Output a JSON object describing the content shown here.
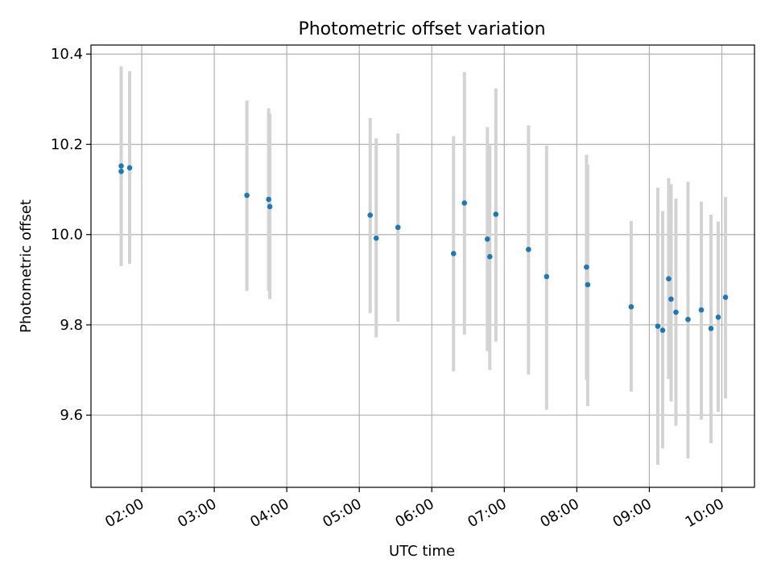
{
  "chart_data": {
    "type": "scatter",
    "title": "Photometric offset variation",
    "xlabel": "UTC time",
    "ylabel": "Photometric offset",
    "xlim": [
      "01:18",
      "10:27"
    ],
    "ylim": [
      9.44,
      10.42
    ],
    "x_ticks": [
      "02:00",
      "03:00",
      "04:00",
      "05:00",
      "06:00",
      "07:00",
      "08:00",
      "09:00",
      "10:00"
    ],
    "y_ticks": [
      9.6,
      9.8,
      10.0,
      10.2,
      10.4
    ],
    "y_tick_labels": [
      "9.6",
      "9.8",
      "10.0",
      "10.2",
      "10.4"
    ],
    "grid": true,
    "points": [
      {
        "x": "01:43",
        "y": 10.152,
        "low": 9.93,
        "high": 10.373
      },
      {
        "x": "01:43",
        "y": 10.14,
        "low": 9.93,
        "high": 10.35
      },
      {
        "x": "01:50",
        "y": 10.148,
        "low": 9.935,
        "high": 10.362
      },
      {
        "x": "03:27",
        "y": 10.087,
        "low": 9.875,
        "high": 10.297
      },
      {
        "x": "03:45",
        "y": 10.078,
        "low": 9.875,
        "high": 10.28
      },
      {
        "x": "03:46",
        "y": 10.062,
        "low": 9.857,
        "high": 10.268
      },
      {
        "x": "05:09",
        "y": 10.043,
        "low": 9.826,
        "high": 10.258
      },
      {
        "x": "05:14",
        "y": 9.992,
        "low": 9.772,
        "high": 10.213
      },
      {
        "x": "05:32",
        "y": 10.016,
        "low": 9.807,
        "high": 10.224
      },
      {
        "x": "06:18",
        "y": 9.958,
        "low": 9.697,
        "high": 10.218
      },
      {
        "x": "06:27",
        "y": 10.07,
        "low": 9.778,
        "high": 10.36
      },
      {
        "x": "06:46",
        "y": 9.99,
        "low": 9.742,
        "high": 10.238
      },
      {
        "x": "06:48",
        "y": 9.951,
        "low": 9.7,
        "high": 10.198
      },
      {
        "x": "06:53",
        "y": 10.045,
        "low": 9.763,
        "high": 10.324
      },
      {
        "x": "07:20",
        "y": 9.967,
        "low": 9.69,
        "high": 10.242
      },
      {
        "x": "07:35",
        "y": 9.907,
        "low": 9.612,
        "high": 10.197
      },
      {
        "x": "08:08",
        "y": 9.928,
        "low": 9.678,
        "high": 10.177
      },
      {
        "x": "08:09",
        "y": 9.889,
        "low": 9.62,
        "high": 10.155
      },
      {
        "x": "08:45",
        "y": 9.84,
        "low": 9.652,
        "high": 10.03
      },
      {
        "x": "09:07",
        "y": 9.797,
        "low": 9.49,
        "high": 10.104
      },
      {
        "x": "09:11",
        "y": 9.788,
        "low": 9.526,
        "high": 10.052
      },
      {
        "x": "09:16",
        "y": 9.902,
        "low": 9.68,
        "high": 10.125
      },
      {
        "x": "09:18",
        "y": 9.857,
        "low": 9.63,
        "high": 10.112
      },
      {
        "x": "09:22",
        "y": 9.828,
        "low": 9.576,
        "high": 10.08
      },
      {
        "x": "09:32",
        "y": 9.812,
        "low": 9.504,
        "high": 10.117
      },
      {
        "x": "09:43",
        "y": 9.833,
        "low": 9.59,
        "high": 10.073
      },
      {
        "x": "09:51",
        "y": 9.792,
        "low": 9.538,
        "high": 10.044
      },
      {
        "x": "09:57",
        "y": 9.817,
        "low": 9.607,
        "high": 10.029
      },
      {
        "x": "10:03",
        "y": 9.861,
        "low": 9.637,
        "high": 10.083
      }
    ],
    "colors": {
      "points": "#1f77b4",
      "errorbars": "#d3d3d3",
      "grid": "#b0b0b0",
      "axes": "#000000"
    }
  }
}
